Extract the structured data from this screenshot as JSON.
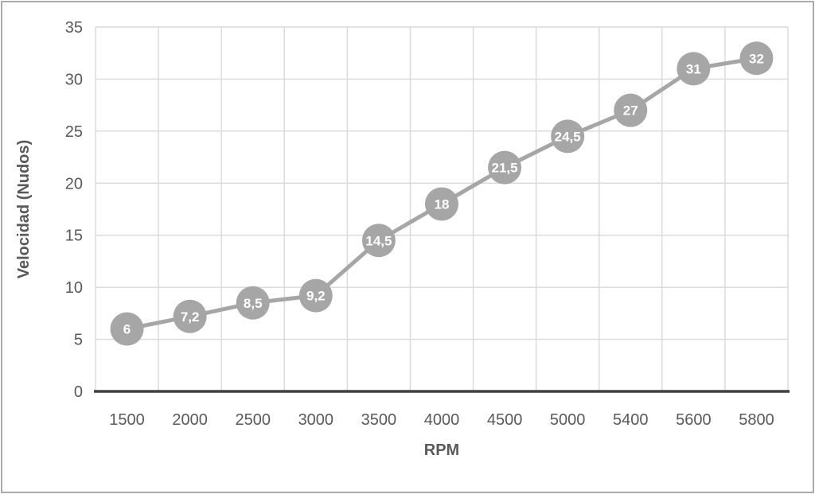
{
  "chart_data": {
    "type": "line",
    "title": "",
    "xlabel": "RPM",
    "ylabel": "Velocidad (Nudos)",
    "categories": [
      "1500",
      "2000",
      "2500",
      "3000",
      "3500",
      "4000",
      "4500",
      "5000",
      "5400",
      "5600",
      "5800"
    ],
    "values": [
      6,
      7.2,
      8.5,
      9.2,
      14.5,
      18,
      21.5,
      24.5,
      27,
      31,
      32
    ],
    "point_labels": [
      "6",
      "7,2",
      "8,5",
      "9,2",
      "14,5",
      "18",
      "21,5",
      "24,5",
      "27",
      "31",
      "32"
    ],
    "ylim": [
      0,
      35
    ],
    "ytick_step": 5,
    "yticks": [
      "0",
      "5",
      "10",
      "15",
      "20",
      "25",
      "30",
      "35"
    ],
    "grid": true,
    "legend": "none",
    "marker_style": "circle",
    "decimal_separator": ",",
    "colors": {
      "series": "#a6a6a6",
      "marker_fill": "#a6a6a6",
      "gridline": "#d9d9d9",
      "axis_line": "#3f3f3f",
      "tick_label": "#595959",
      "axis_title": "#595959",
      "data_label": "#ffffff",
      "background": "#ffffff",
      "frame_border": "#ababab"
    }
  }
}
